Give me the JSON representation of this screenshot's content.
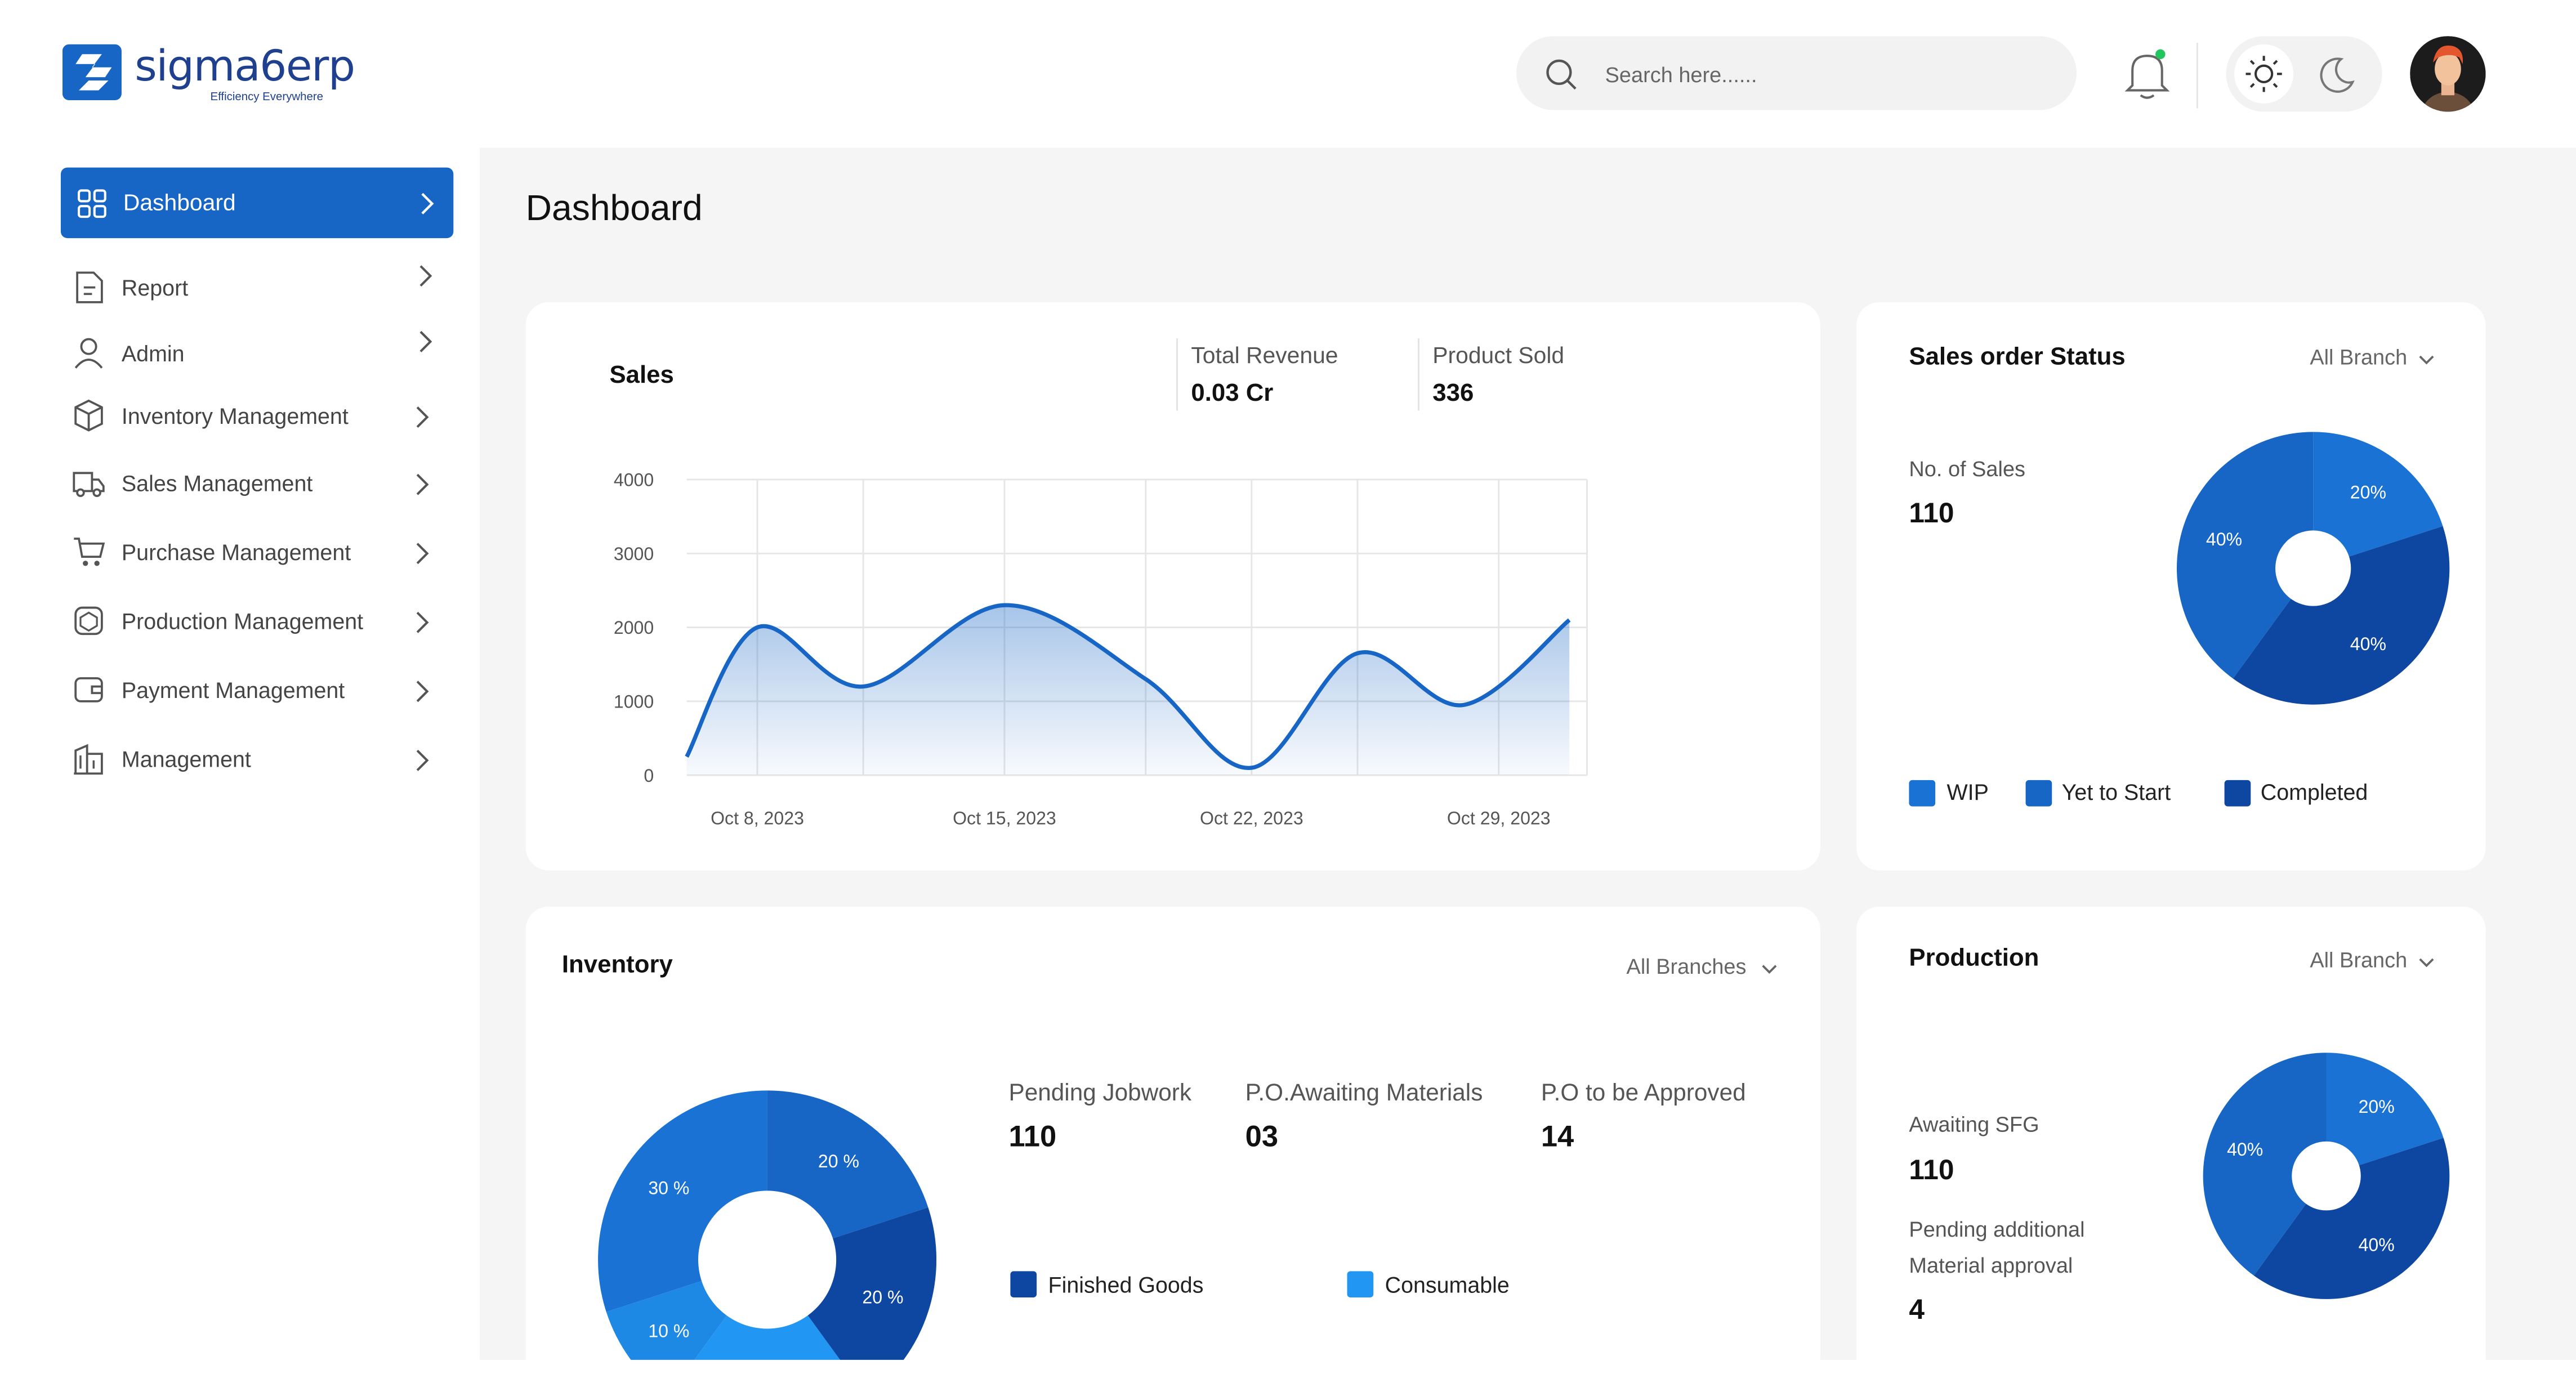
{
  "brand": {
    "name": "sigma6erp",
    "tagline": "Efficiency Everywhere",
    "color": "#1766c5"
  },
  "header": {
    "search_placeholder": "Search here......"
  },
  "sidebar": {
    "items": [
      {
        "label": "Dashboard",
        "icon": "grid-icon",
        "active": true
      },
      {
        "label": "Report",
        "icon": "document-icon"
      },
      {
        "label": "Admin",
        "icon": "user-icon"
      },
      {
        "label": "Inventory Management",
        "icon": "box-icon"
      },
      {
        "label": "Sales Management",
        "icon": "truck-icon"
      },
      {
        "label": "Purchase Management",
        "icon": "cart-icon"
      },
      {
        "label": "Production Management",
        "icon": "cube-icon"
      },
      {
        "label": "Payment Management",
        "icon": "wallet-icon"
      },
      {
        "label": "Management",
        "icon": "building-icon"
      }
    ]
  },
  "page": {
    "title": "Dashboard"
  },
  "sales": {
    "title": "Sales",
    "total_revenue_label": "Total Revenue",
    "total_revenue": "0.03 Cr",
    "product_sold_label": "Product Sold",
    "product_sold": "336"
  },
  "sales_order_status": {
    "title": "Sales order Status",
    "branch": "All Branch",
    "no_of_sales_label": "No. of Sales",
    "no_of_sales": "110",
    "slice_labels": [
      "20%",
      "40%",
      "40%"
    ],
    "legend": [
      "WIP",
      "Yet to Start",
      "Completed"
    ]
  },
  "inventory": {
    "title": "Inventory",
    "branch": "All Branches",
    "stats": [
      {
        "label": "Pending Jobwork",
        "value": "110"
      },
      {
        "label": "P.O.Awaiting Materials",
        "value": "03"
      },
      {
        "label": "P.O to be Approved",
        "value": "14"
      }
    ],
    "slice_labels": [
      "20 %",
      "20 %",
      "20 %",
      "10 %",
      "30 %"
    ],
    "legend": [
      "Finished Goods",
      "Consumable"
    ]
  },
  "production": {
    "title": "Production",
    "branch": "All Branch",
    "awaiting_sfg_label": "Awaiting SFG",
    "awaiting_sfg": "110",
    "pending_label_1": "Pending additional",
    "pending_label_2": "Material approval",
    "pending_value": "4",
    "slice_labels": [
      "20%",
      "40%",
      "40%"
    ]
  },
  "colors": {
    "primary": "#1766c5",
    "blue_mid": "#1a73d4",
    "blue_dark": "#0d47a1",
    "blue_light": "#2196f3"
  },
  "chart_data": [
    {
      "type": "area",
      "title": "Sales",
      "x": [
        "Oct 6, 2023",
        "Oct 8, 2023",
        "Oct 11, 2023",
        "Oct 15, 2023",
        "Oct 19, 2023",
        "Oct 22, 2023",
        "Oct 25, 2023",
        "Oct 28, 2023",
        "Oct 31, 2023"
      ],
      "y": [
        250,
        2000,
        1200,
        2300,
        1300,
        100,
        1650,
        950,
        2100
      ],
      "xticks": [
        "Oct 8, 2023",
        "Oct 15, 2023",
        "Oct 22, 2023",
        "Oct 29, 2023"
      ],
      "yticks": [
        0,
        1000,
        2000,
        3000,
        4000
      ],
      "ylim": [
        0,
        4000
      ],
      "grid": true
    },
    {
      "type": "pie",
      "title": "Sales order Status",
      "labels": [
        "WIP",
        "Yet to Start",
        "Completed"
      ],
      "values": [
        20,
        40,
        40
      ]
    },
    {
      "type": "pie",
      "title": "Inventory",
      "values": [
        20,
        20,
        20,
        10,
        30
      ]
    },
    {
      "type": "pie",
      "title": "Production",
      "values": [
        20,
        40,
        40
      ]
    }
  ]
}
